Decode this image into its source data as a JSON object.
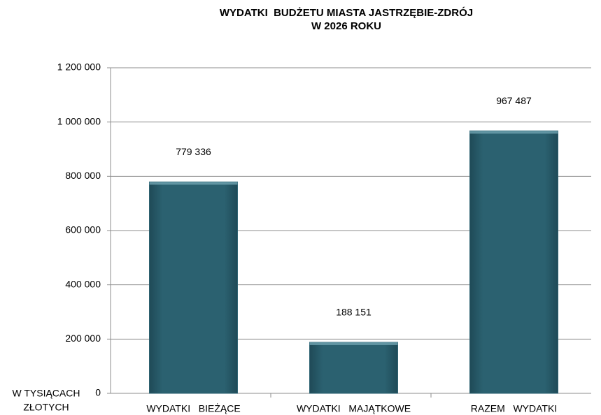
{
  "chart_data": {
    "type": "bar",
    "title": [
      "WYDATKI  BUDŻETU MIASTA JASTRZĘBIE-ZDRÓJ",
      "W 2026 ROKU"
    ],
    "y_label": [
      "W TYSIĄCACH",
      "ZŁOTYCH"
    ],
    "categories": [
      "WYDATKI   BIEŻĄCE",
      "WYDATKI   MAJĄTKOWE",
      "RAZEM   WYDATKI"
    ],
    "values": [
      779336,
      188151,
      967487
    ],
    "value_labels": [
      "779 336",
      "188 151",
      "967 487"
    ],
    "color": "#2b6170",
    "ylim": [
      0,
      1200000
    ],
    "yticks": [
      0,
      {
        "value": 200000,
        "label": "200 000"
      },
      {
        "value": 400000,
        "label": "400 000"
      },
      {
        "value": 600000,
        "label": "600 000"
      },
      {
        "value": 800000,
        "label": "800 000"
      },
      {
        "value": 1000000,
        "label": "1 000 000"
      },
      {
        "value": 1200000,
        "label": "1 200 000"
      }
    ],
    "grid": true
  }
}
